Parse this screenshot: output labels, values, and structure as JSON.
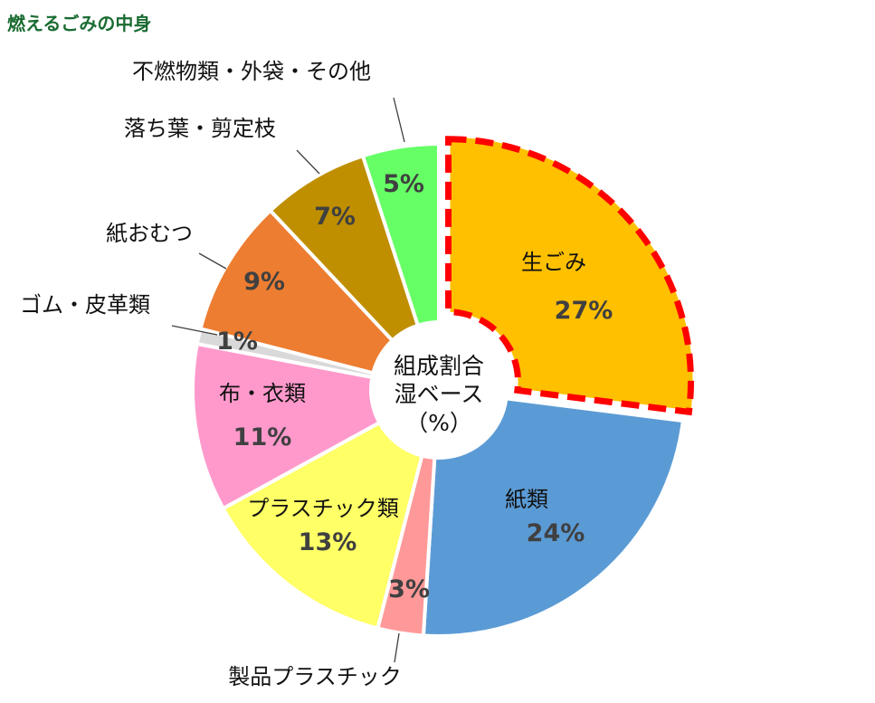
{
  "chart_data": {
    "type": "pie",
    "title": "燃えるごみの中身",
    "center_label": [
      "組成割合",
      "湿ベース",
      "（%）"
    ],
    "unit": "%",
    "slices": [
      {
        "label": "生ごみ",
        "value": 27,
        "value_label": "27%",
        "color": "#ffc000",
        "highlight": true
      },
      {
        "label": "紙類",
        "value": 24,
        "value_label": "24%",
        "color": "#5b9bd5"
      },
      {
        "label": "製品プラスチック",
        "value": 3,
        "value_label": "3%",
        "color": "#ff9999"
      },
      {
        "label": "プラスチック類",
        "value": 13,
        "value_label": "13%",
        "color": "#ffff66"
      },
      {
        "label": "布・衣類",
        "value": 11,
        "value_label": "11%",
        "color": "#ff99cc"
      },
      {
        "label": "ゴム・皮革類",
        "value": 1,
        "value_label": "1%",
        "color": "#d9d9d9"
      },
      {
        "label": "紙おむつ",
        "value": 9,
        "value_label": "9%",
        "color": "#ed7d31"
      },
      {
        "label": "落ち葉・剪定枝",
        "value": 7,
        "value_label": "7%",
        "color": "#bf8f00"
      },
      {
        "label": "不燃物類・外袋・その他",
        "value": 5,
        "value_label": "5%",
        "color": "#66ff66"
      }
    ],
    "highlight_color": "#ff0000",
    "title_color": "#1a6b32"
  }
}
